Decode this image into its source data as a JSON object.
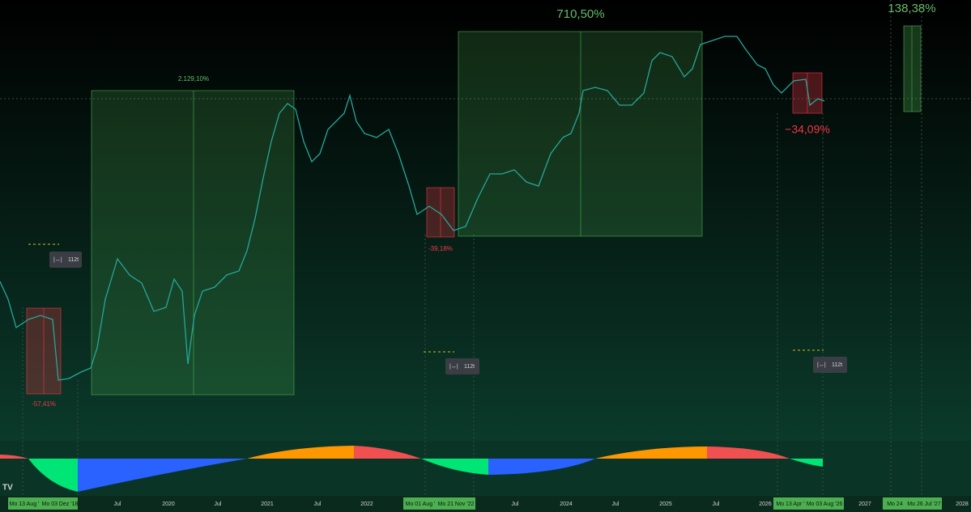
{
  "measurements": [
    {
      "label": "2.129,10%"
    },
    {
      "label": "710,50%"
    },
    {
      "label": "138,38%"
    },
    {
      "label": "-57,41%"
    },
    {
      "label": "-39,18%"
    },
    {
      "label": "−34,09%"
    }
  ],
  "bar_counts": [
    "112t",
    "112t",
    "112t"
  ],
  "time_axis": [
    "Mo 13 Aug '",
    "Mo 03 Dez '18",
    "Jul",
    "2020",
    "Jul",
    "2021",
    "Jul",
    "2022",
    "Mo 01 Aug '",
    "Mo 21 Nov '22",
    "Jul",
    "2024",
    "Jul",
    "2025",
    "Jul",
    "2026",
    "Mo 13 Apr '",
    "Mo 03 Aug '26",
    "2027",
    "Mo 24",
    "Mo 26 Jul '27",
    "2028"
  ]
}
